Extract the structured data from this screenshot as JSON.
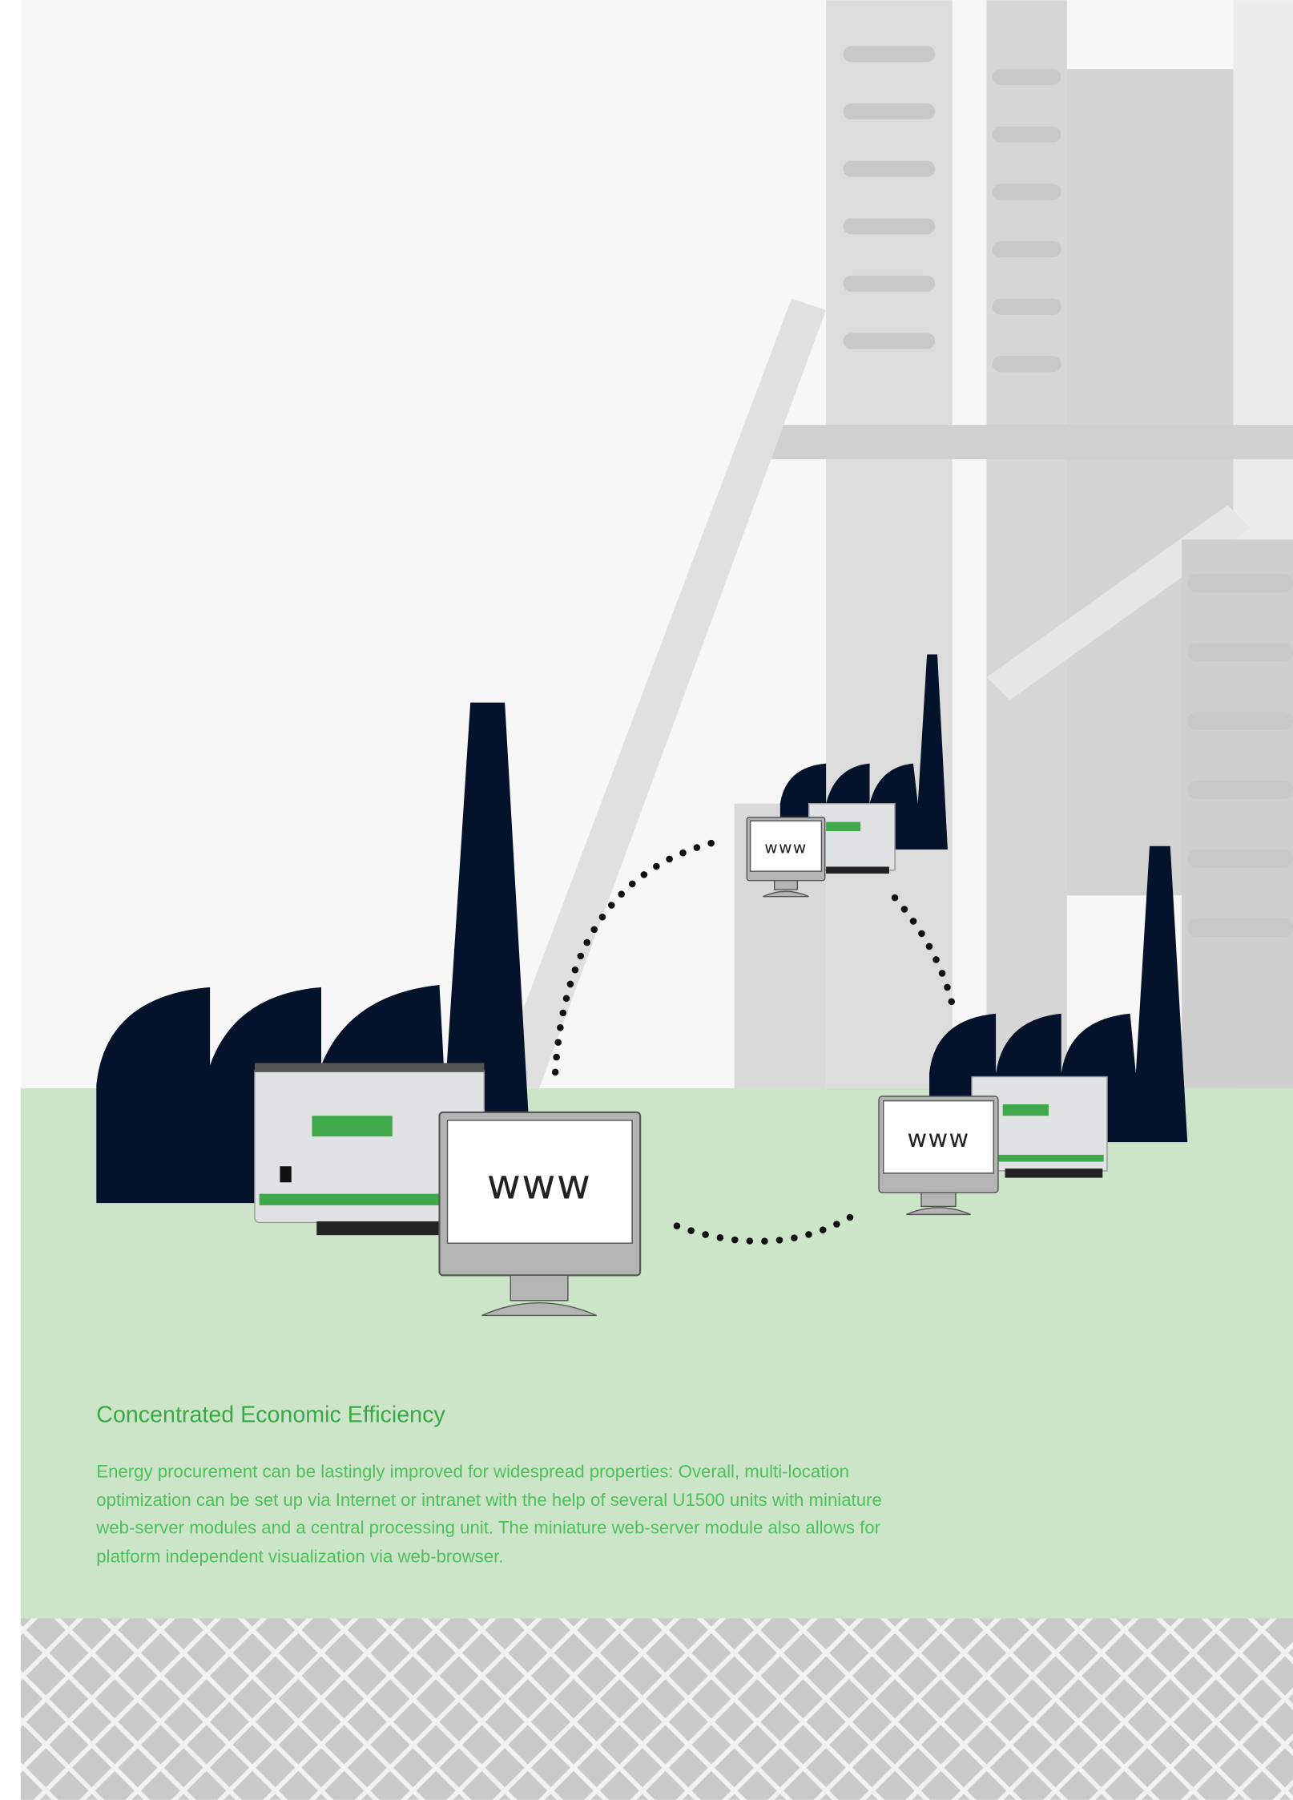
{
  "diagram": {
    "labels": [
      "www",
      "www",
      "www"
    ]
  },
  "heading": "Concentrated Economic Efficiency",
  "body": {
    "lines": [
      "Energy procurement can be lastingly improved for widespread properties: Overall, multi-location",
      "optimization can be set up via Internet or intranet with the help of several U1500 units with miniature",
      "web-server modules and a central processing unit. The miniature web-server module also allows for",
      "platform independent visualization via web-browser."
    ]
  }
}
